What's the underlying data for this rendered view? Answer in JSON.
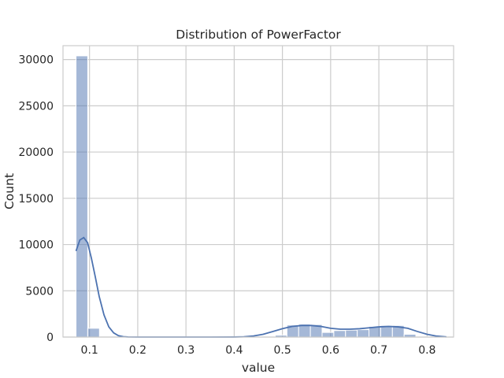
{
  "chart_data": {
    "type": "bar",
    "title": "Distribution of PowerFactor",
    "xlabel": "value",
    "ylabel": "Count",
    "xlim": [
      0.045,
      0.855
    ],
    "ylim": [
      0,
      31500
    ],
    "xticks": [
      0.1,
      0.2,
      0.3,
      0.4,
      0.5,
      0.6,
      0.7,
      0.8
    ],
    "xtick_labels": [
      "0.1",
      "0.2",
      "0.3",
      "0.4",
      "0.5",
      "0.6",
      "0.7",
      "0.8"
    ],
    "yticks": [
      0,
      5000,
      10000,
      15000,
      20000,
      25000,
      30000
    ],
    "ytick_labels": [
      "0",
      "5000",
      "10000",
      "15000",
      "20000",
      "25000",
      "30000"
    ],
    "grid": true,
    "colors": {
      "bar": "#4c72b0",
      "bar_opacity": 0.5,
      "kde": "#4c72b0",
      "grid": "#cccccc",
      "background": "#ffffff"
    },
    "bins": [
      {
        "x0": 0.072,
        "x1": 0.0963,
        "count": 30400
      },
      {
        "x0": 0.0963,
        "x1": 0.1206,
        "count": 950
      },
      {
        "x0": 0.1206,
        "x1": 0.1449,
        "count": 0
      },
      {
        "x0": 0.1449,
        "x1": 0.1692,
        "count": 0
      },
      {
        "x0": 0.1692,
        "x1": 0.1935,
        "count": 0
      },
      {
        "x0": 0.1935,
        "x1": 0.2178,
        "count": 0
      },
      {
        "x0": 0.2178,
        "x1": 0.2421,
        "count": 0
      },
      {
        "x0": 0.2421,
        "x1": 0.2664,
        "count": 0
      },
      {
        "x0": 0.2664,
        "x1": 0.2907,
        "count": 0
      },
      {
        "x0": 0.2907,
        "x1": 0.315,
        "count": 0
      },
      {
        "x0": 0.315,
        "x1": 0.3393,
        "count": 0
      },
      {
        "x0": 0.3393,
        "x1": 0.3636,
        "count": 0
      },
      {
        "x0": 0.3636,
        "x1": 0.3879,
        "count": 0
      },
      {
        "x0": 0.3879,
        "x1": 0.4122,
        "count": 0
      },
      {
        "x0": 0.4122,
        "x1": 0.4365,
        "count": 0
      },
      {
        "x0": 0.4365,
        "x1": 0.4608,
        "count": 0
      },
      {
        "x0": 0.4608,
        "x1": 0.4851,
        "count": 10
      },
      {
        "x0": 0.4851,
        "x1": 0.5094,
        "count": 200
      },
      {
        "x0": 0.5094,
        "x1": 0.5337,
        "count": 1300
      },
      {
        "x0": 0.5337,
        "x1": 0.558,
        "count": 1400
      },
      {
        "x0": 0.558,
        "x1": 0.5823,
        "count": 1350
      },
      {
        "x0": 0.5823,
        "x1": 0.6066,
        "count": 500
      },
      {
        "x0": 0.6066,
        "x1": 0.6309,
        "count": 700
      },
      {
        "x0": 0.6309,
        "x1": 0.6552,
        "count": 750
      },
      {
        "x0": 0.6552,
        "x1": 0.6795,
        "count": 800
      },
      {
        "x0": 0.6795,
        "x1": 0.7038,
        "count": 1150
      },
      {
        "x0": 0.7038,
        "x1": 0.7281,
        "count": 1250
      },
      {
        "x0": 0.7281,
        "x1": 0.7524,
        "count": 1250
      },
      {
        "x0": 0.7524,
        "x1": 0.7767,
        "count": 300
      },
      {
        "x0": 0.7767,
        "x1": 0.801,
        "count": 30
      }
    ],
    "kde": {
      "x": [
        0.072,
        0.08,
        0.088,
        0.096,
        0.104,
        0.112,
        0.12,
        0.13,
        0.14,
        0.15,
        0.16,
        0.17,
        0.18,
        0.2,
        0.25,
        0.3,
        0.35,
        0.4,
        0.42,
        0.44,
        0.46,
        0.48,
        0.5,
        0.52,
        0.54,
        0.56,
        0.58,
        0.6,
        0.62,
        0.64,
        0.66,
        0.68,
        0.7,
        0.72,
        0.74,
        0.76,
        0.78,
        0.8,
        0.82,
        0.84
      ],
      "y": [
        9300,
        10500,
        10750,
        10200,
        8500,
        6500,
        4400,
        2400,
        1100,
        450,
        150,
        40,
        10,
        0,
        0,
        0,
        0,
        5,
        30,
        120,
        300,
        600,
        900,
        1150,
        1250,
        1250,
        1150,
        950,
        850,
        850,
        900,
        1000,
        1100,
        1150,
        1100,
        950,
        600,
        300,
        100,
        20
      ]
    }
  }
}
